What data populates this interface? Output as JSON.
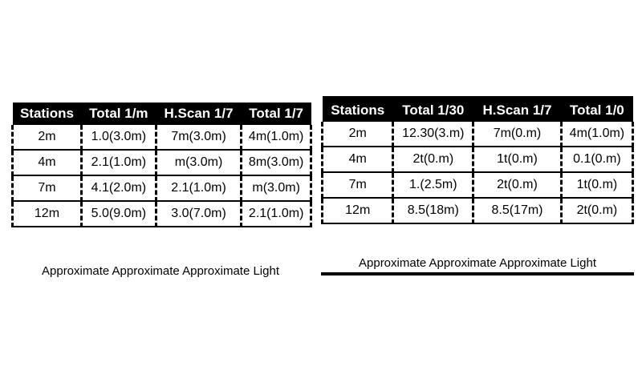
{
  "left_table": {
    "headers": [
      "Stations",
      "Total 1/m",
      "H.Scan 1/7",
      "Total 1/7"
    ],
    "rows": [
      [
        "2m",
        "1.0(3.0m)",
        "7m(3.0m)",
        "4m(1.0m)"
      ],
      [
        "4m",
        "2.1(1.0m)",
        "m(3.0m)",
        "8m(3.0m)"
      ],
      [
        "7m",
        "4.1(2.0m)",
        "2.1(1.0m)",
        "m(3.0m)"
      ],
      [
        "12m",
        "5.0(9.0m)",
        "3.0(7.0m)",
        "2.1(1.0m)"
      ]
    ],
    "caption": "Approximate Approximate Approximate Light"
  },
  "right_table": {
    "headers": [
      "Stations",
      "Total 1/30",
      "H.Scan 1/7",
      "Total 1/0"
    ],
    "rows": [
      [
        "2m",
        "12.30(3.m)",
        "7m(0.m)",
        "4m(1.0m)"
      ],
      [
        "4m",
        "2t(0.m)",
        "1t(0.m)",
        "0.1(0.m)"
      ],
      [
        "7m",
        "1.(2.5m)",
        "2t(0.m)",
        "1t(0.m)"
      ],
      [
        "12m",
        "8.5(18m)",
        "8.5(17m)",
        "2t(0.m)"
      ]
    ],
    "caption": "Approximate Approximate Approximate Light"
  }
}
